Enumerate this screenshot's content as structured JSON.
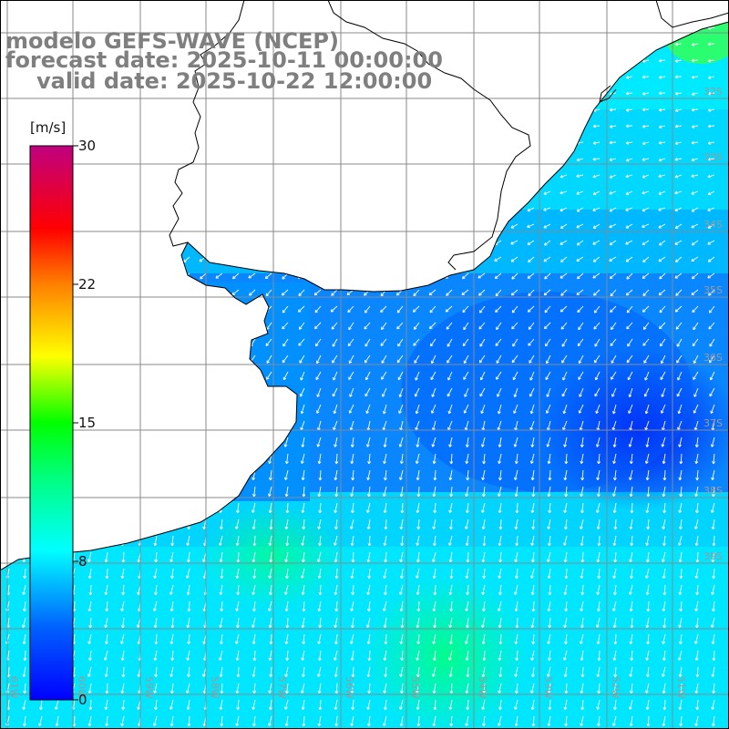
{
  "title": {
    "line1": "modelo GEFS-WAVE (NCEP)",
    "line2": "forecast date: 2025-10-11 00:00:00",
    "line3": "valid date: 2025-10-22 12:00:00"
  },
  "colorbar": {
    "unit": "[m/s]",
    "ticks": [
      "30",
      "22",
      "15",
      "8",
      "0"
    ],
    "tick_values": [
      30,
      22,
      15,
      8,
      0
    ],
    "colors": [
      "#0000ff",
      "#0080ff",
      "#00ffff",
      "#00ff80",
      "#00ff00",
      "#ffff00",
      "#ff8000",
      "#ff0000",
      "#c00080"
    ]
  },
  "map": {
    "variable": "wind speed and direction",
    "grid_lines": true,
    "lat_labels": [
      "32S",
      "33S",
      "34S",
      "35S",
      "36S",
      "37S",
      "38S",
      "39S"
    ],
    "lon_labels": [
      "61W",
      "60W",
      "59W",
      "58W",
      "57W",
      "56W",
      "55W",
      "54W",
      "53W",
      "52W",
      "51W"
    ],
    "land_color": "#ffffff",
    "coast_color": "#000000",
    "arrow_color": "#ffffff"
  }
}
